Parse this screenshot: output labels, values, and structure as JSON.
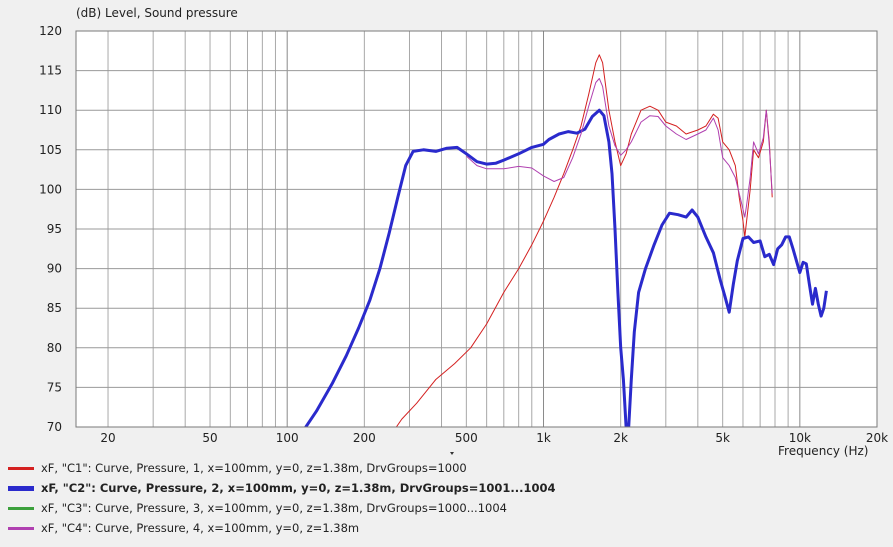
{
  "chart_data": {
    "type": "line",
    "title": "",
    "ylabel": "(dB)  Level, Sound pressure",
    "xlabel": "Frequency  (Hz)",
    "xscale": "log",
    "xlim": [
      15,
      20000
    ],
    "ylim": [
      70,
      120
    ],
    "grid": true,
    "legend_placement": "bottom",
    "x_ticks": [
      {
        "value": 20,
        "label": "20"
      },
      {
        "value": 50,
        "label": "50"
      },
      {
        "value": 100,
        "label": "100"
      },
      {
        "value": 200,
        "label": "200"
      },
      {
        "value": 500,
        "label": "500"
      },
      {
        "value": 1000,
        "label": "1k"
      },
      {
        "value": 2000,
        "label": "2k"
      },
      {
        "value": 5000,
        "label": "5k"
      },
      {
        "value": 10000,
        "label": "10k"
      },
      {
        "value": 20000,
        "label": "20k"
      }
    ],
    "y_ticks": [
      120,
      115,
      110,
      105,
      100,
      95,
      90,
      85,
      80,
      75,
      70
    ],
    "series": [
      {
        "name": "xF, \"C1\": Curve, Pressure, 1, x=100mm, y=0, z=1.38m, DrvGroups=1000",
        "color": "#d42020",
        "width": 1,
        "bold": false,
        "points": [
          [
            260,
            69.5
          ],
          [
            280,
            71
          ],
          [
            320,
            73
          ],
          [
            380,
            76
          ],
          [
            450,
            78
          ],
          [
            520,
            80
          ],
          [
            600,
            83
          ],
          [
            700,
            87
          ],
          [
            800,
            90
          ],
          [
            900,
            93
          ],
          [
            1000,
            96
          ],
          [
            1100,
            99
          ],
          [
            1200,
            102
          ],
          [
            1300,
            105
          ],
          [
            1400,
            108
          ],
          [
            1500,
            112
          ],
          [
            1600,
            116
          ],
          [
            1650,
            117
          ],
          [
            1700,
            116
          ],
          [
            1800,
            110
          ],
          [
            1900,
            106
          ],
          [
            2000,
            103
          ],
          [
            2100,
            104.5
          ],
          [
            2200,
            107
          ],
          [
            2400,
            110
          ],
          [
            2600,
            110.5
          ],
          [
            2800,
            110
          ],
          [
            3000,
            108.5
          ],
          [
            3300,
            108
          ],
          [
            3600,
            107
          ],
          [
            4000,
            107.5
          ],
          [
            4300,
            108
          ],
          [
            4600,
            109.5
          ],
          [
            4800,
            109
          ],
          [
            5000,
            106
          ],
          [
            5300,
            105
          ],
          [
            5600,
            103
          ],
          [
            5800,
            99
          ],
          [
            6000,
            96
          ],
          [
            6100,
            94
          ],
          [
            6200,
            96
          ],
          [
            6400,
            100
          ],
          [
            6600,
            105
          ],
          [
            6900,
            104
          ],
          [
            7200,
            106
          ],
          [
            7400,
            110
          ],
          [
            7600,
            106
          ],
          [
            7800,
            99
          ]
        ]
      },
      {
        "name": "xF, \"C2\": Curve, Pressure, 2, x=100mm, y=0, z=1.38m, DrvGroups=1001...1004",
        "color": "#2a2acc",
        "width": 3,
        "bold": true,
        "points": [
          [
            117,
            69.8
          ],
          [
            130,
            72
          ],
          [
            150,
            75.5
          ],
          [
            170,
            79
          ],
          [
            190,
            82.5
          ],
          [
            210,
            86
          ],
          [
            230,
            90
          ],
          [
            250,
            94.5
          ],
          [
            270,
            99
          ],
          [
            290,
            103
          ],
          [
            310,
            104.8
          ],
          [
            340,
            105
          ],
          [
            380,
            104.8
          ],
          [
            420,
            105.2
          ],
          [
            460,
            105.3
          ],
          [
            500,
            104.5
          ],
          [
            550,
            103.5
          ],
          [
            600,
            103.2
          ],
          [
            650,
            103.3
          ],
          [
            700,
            103.7
          ],
          [
            800,
            104.5
          ],
          [
            900,
            105.3
          ],
          [
            1000,
            105.7
          ],
          [
            1050,
            106.3
          ],
          [
            1150,
            107
          ],
          [
            1250,
            107.3
          ],
          [
            1350,
            107.1
          ],
          [
            1450,
            107.6
          ],
          [
            1550,
            109.2
          ],
          [
            1650,
            110
          ],
          [
            1720,
            109.3
          ],
          [
            1800,
            106
          ],
          [
            1850,
            102
          ],
          [
            1900,
            95
          ],
          [
            1950,
            87
          ],
          [
            2000,
            80
          ],
          [
            2050,
            76
          ],
          [
            2100,
            70
          ],
          [
            2150,
            70
          ],
          [
            2200,
            76
          ],
          [
            2260,
            82
          ],
          [
            2350,
            87
          ],
          [
            2500,
            90
          ],
          [
            2700,
            93
          ],
          [
            2900,
            95.5
          ],
          [
            3100,
            97
          ],
          [
            3350,
            96.8
          ],
          [
            3600,
            96.5
          ],
          [
            3800,
            97.4
          ],
          [
            4000,
            96.5
          ],
          [
            4300,
            94
          ],
          [
            4600,
            92
          ],
          [
            4900,
            88.5
          ],
          [
            5100,
            86.5
          ],
          [
            5300,
            84.5
          ],
          [
            5500,
            88
          ],
          [
            5700,
            91
          ],
          [
            6000,
            93.8
          ],
          [
            6300,
            94
          ],
          [
            6600,
            93.3
          ],
          [
            7000,
            93.5
          ],
          [
            7300,
            91.5
          ],
          [
            7600,
            91.8
          ],
          [
            7900,
            90.5
          ],
          [
            8200,
            92.5
          ],
          [
            8500,
            93
          ],
          [
            8800,
            94
          ],
          [
            9100,
            94
          ],
          [
            9400,
            92.5
          ],
          [
            9700,
            91
          ],
          [
            10000,
            89.5
          ],
          [
            10300,
            90.8
          ],
          [
            10600,
            90.6
          ],
          [
            10900,
            88
          ],
          [
            11200,
            85.5
          ],
          [
            11500,
            87.5
          ],
          [
            11800,
            85.5
          ],
          [
            12100,
            84
          ],
          [
            12400,
            85
          ],
          [
            12700,
            87.2
          ]
        ]
      },
      {
        "name": "xF, \"C3\": Curve, Pressure, 3, x=100mm, y=0, z=1.38m, DrvGroups=1000...1004",
        "color": "#3ca03c",
        "width": 1,
        "bold": false,
        "points": []
      },
      {
        "name": "xF, \"C4\": Curve, Pressure, 4, x=100mm, y=0, z=1.38m",
        "color": "#b040b0",
        "width": 1,
        "bold": false,
        "points": [
          [
            500,
            104.2
          ],
          [
            550,
            103
          ],
          [
            600,
            102.6
          ],
          [
            700,
            102.6
          ],
          [
            800,
            102.9
          ],
          [
            900,
            102.7
          ],
          [
            1000,
            101.7
          ],
          [
            1100,
            101
          ],
          [
            1200,
            101.5
          ],
          [
            1300,
            104
          ],
          [
            1400,
            107
          ],
          [
            1500,
            110.5
          ],
          [
            1600,
            113.5
          ],
          [
            1650,
            114
          ],
          [
            1700,
            113
          ],
          [
            1800,
            108
          ],
          [
            1900,
            105.5
          ],
          [
            2000,
            104.3
          ],
          [
            2100,
            105
          ],
          [
            2200,
            106
          ],
          [
            2400,
            108.5
          ],
          [
            2600,
            109.3
          ],
          [
            2800,
            109.2
          ],
          [
            3000,
            108
          ],
          [
            3300,
            107
          ],
          [
            3600,
            106.3
          ],
          [
            4000,
            107
          ],
          [
            4300,
            107.5
          ],
          [
            4600,
            109
          ],
          [
            4800,
            107.5
          ],
          [
            5000,
            104
          ],
          [
            5300,
            103
          ],
          [
            5600,
            101.5
          ],
          [
            5800,
            99.5
          ],
          [
            6000,
            97.5
          ],
          [
            6100,
            96.5
          ],
          [
            6200,
            98
          ],
          [
            6400,
            101.5
          ],
          [
            6600,
            106
          ],
          [
            6900,
            104.5
          ],
          [
            7200,
            106.5
          ],
          [
            7400,
            110
          ],
          [
            7600,
            105.5
          ],
          [
            7800,
            99.5
          ]
        ]
      }
    ]
  }
}
